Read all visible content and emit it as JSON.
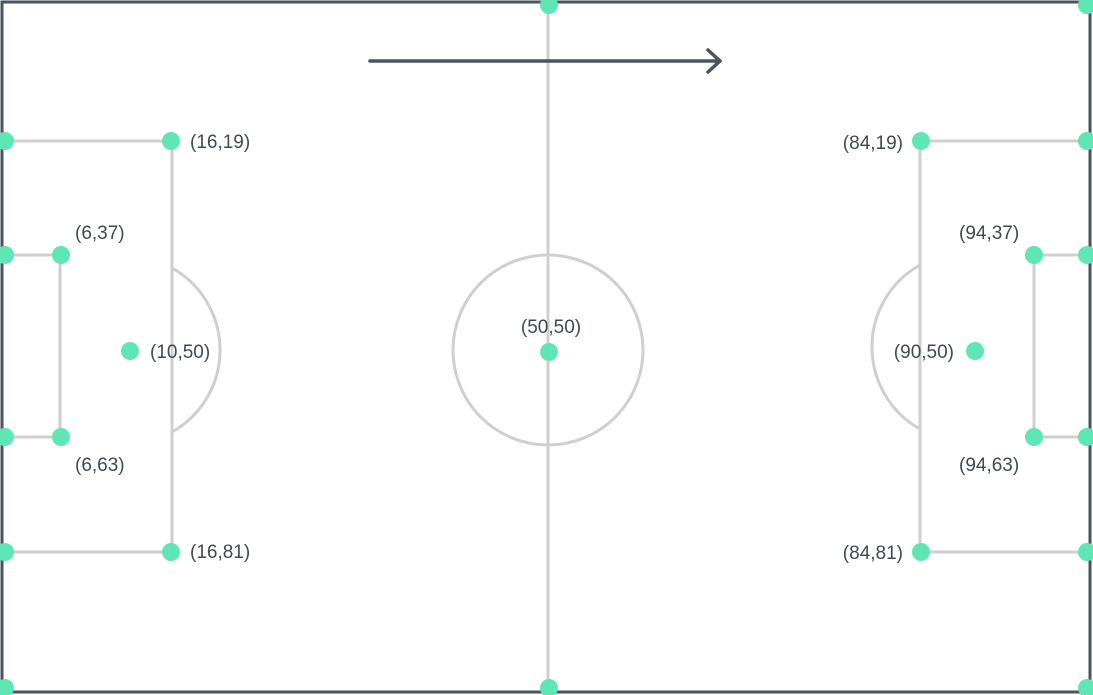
{
  "pitch": {
    "direction_arrow": "right",
    "colors": {
      "border": "#47555e",
      "lines": "#cfcfcf",
      "markers": "#5ee6b5",
      "text": "#3e4a52",
      "background": "#ffffff"
    },
    "labels": {
      "left_box_top": "(16,19)",
      "left_six_top": "(6,37)",
      "left_spot": "(10,50)",
      "left_six_bottom": "(6,63)",
      "left_box_bottom": "(16,81)",
      "center": "(50,50)",
      "right_box_top": "(84,19)",
      "right_six_top": "(94,37)",
      "right_spot": "(90,50)",
      "right_six_bottom": "(94,63)",
      "right_box_bottom": "(84,81)"
    }
  }
}
